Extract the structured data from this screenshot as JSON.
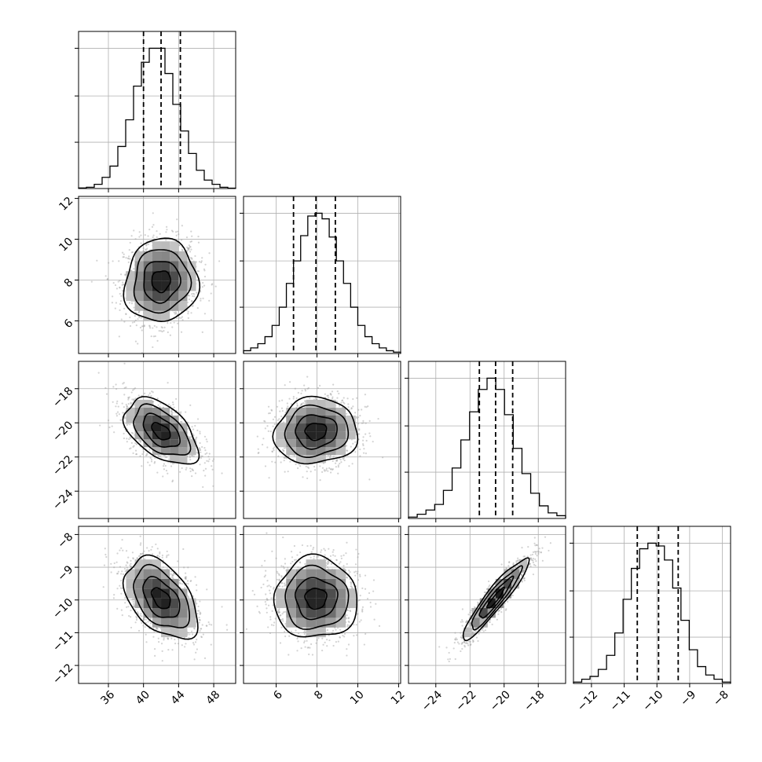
{
  "chart_data": {
    "type": "corner",
    "parameters": [
      {
        "index": 0,
        "range": [
          32.6,
          50.5
        ],
        "ticks": [
          36,
          40,
          44,
          48
        ],
        "tick_labels": [
          "36",
          "40",
          "44",
          "48"
        ],
        "quantiles": [
          40.0,
          42.0,
          44.2
        ],
        "hist": [
          0.004,
          0.009,
          0.03,
          0.08,
          0.16,
          0.3,
          0.49,
          0.73,
          0.9,
          1.0,
          1.0,
          0.82,
          0.6,
          0.41,
          0.25,
          0.13,
          0.06,
          0.03,
          0.009,
          0.003
        ]
      },
      {
        "index": 1,
        "range": [
          4.4,
          12.1
        ],
        "ticks": [
          6,
          8,
          10,
          12
        ],
        "tick_labels": [
          "6",
          "8",
          "10",
          "12"
        ],
        "quantiles": [
          6.85,
          7.95,
          8.9
        ],
        "hist": [
          0.02,
          0.04,
          0.07,
          0.12,
          0.2,
          0.33,
          0.5,
          0.66,
          0.84,
          0.98,
          1.0,
          0.96,
          0.83,
          0.66,
          0.5,
          0.33,
          0.2,
          0.12,
          0.07,
          0.04,
          0.02,
          0.01
        ]
      },
      {
        "index": 2,
        "range": [
          -25.6,
          -16.4
        ],
        "ticks": [
          -24,
          -22,
          -20,
          -18
        ],
        "tick_labels": [
          "−24",
          "−22",
          "−20",
          "−18"
        ],
        "quantiles": [
          -21.45,
          -20.5,
          -19.5
        ],
        "hist": [
          0.01,
          0.03,
          0.06,
          0.1,
          0.2,
          0.36,
          0.56,
          0.76,
          0.92,
          1.0,
          0.92,
          0.74,
          0.5,
          0.32,
          0.18,
          0.09,
          0.04,
          0.02
        ]
      },
      {
        "index": 3,
        "range": [
          -12.55,
          -7.75
        ],
        "ticks": [
          -12,
          -11,
          -10,
          -9,
          -8
        ],
        "tick_labels": [
          "−12",
          "−11",
          "−10",
          "−9",
          "−8"
        ],
        "quantiles": [
          -10.6,
          -9.95,
          -9.35
        ],
        "hist": [
          0.01,
          0.03,
          0.05,
          0.1,
          0.2,
          0.36,
          0.6,
          0.82,
          0.96,
          1.0,
          0.98,
          0.88,
          0.68,
          0.45,
          0.24,
          0.12,
          0.06,
          0.03,
          0.01
        ]
      }
    ],
    "pairs": [
      {
        "x": 0,
        "y": 1,
        "correlation": 0.05
      },
      {
        "x": 0,
        "y": 2,
        "correlation": -0.5
      },
      {
        "x": 1,
        "y": 2,
        "correlation": 0.05
      },
      {
        "x": 0,
        "y": 3,
        "correlation": -0.45
      },
      {
        "x": 1,
        "y": 3,
        "correlation": 0.0
      },
      {
        "x": 2,
        "y": 3,
        "correlation": 0.93
      }
    ],
    "contour_levels": [
      0.12,
      0.39,
      0.68,
      0.86
    ],
    "grid": true,
    "colors": {
      "line": "#000000",
      "scatter": "#9e9e9e",
      "grid": "#b0b0b0"
    }
  }
}
